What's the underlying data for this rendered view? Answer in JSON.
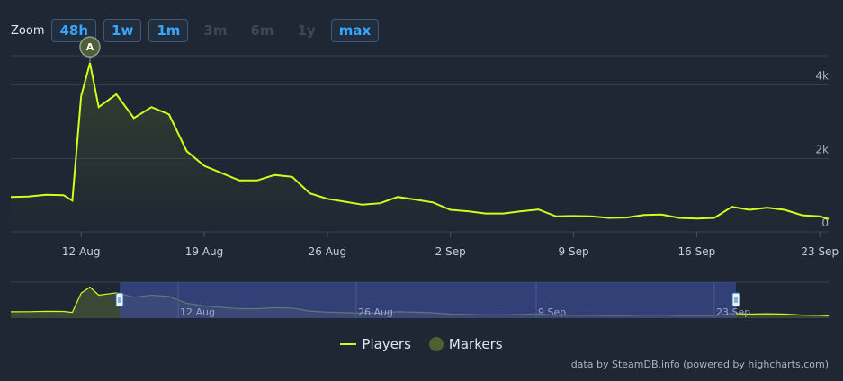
{
  "zoom": {
    "label": "Zoom",
    "buttons": [
      {
        "label": "48h",
        "state": "active"
      },
      {
        "label": "1w",
        "state": "active"
      },
      {
        "label": "1m",
        "state": "active"
      },
      {
        "label": "3m",
        "state": "disabled"
      },
      {
        "label": "6m",
        "state": "disabled"
      },
      {
        "label": "1y",
        "state": "disabled"
      },
      {
        "label": "max",
        "state": "active"
      }
    ]
  },
  "colors": {
    "background": "#1e2733",
    "line": "#d1ff1c",
    "marker": "#4f6033",
    "button_active": "#38a6ff",
    "navigator_mask": "#3a4a8f"
  },
  "legend": {
    "players": "Players",
    "markers": "Markers"
  },
  "credits": "data by SteamDB.info (powered by highcharts.com)",
  "chart_data": {
    "type": "line",
    "title": "",
    "xlabel": "",
    "ylabel": "",
    "x_ticks": [
      "12 Aug",
      "19 Aug",
      "26 Aug",
      "2 Sep",
      "9 Sep",
      "16 Sep",
      "23 Sep"
    ],
    "y_ticks": [
      "0",
      "2k",
      "4k"
    ],
    "ylim": [
      0,
      4800
    ],
    "xlim": [
      "2024-08-08",
      "2024-09-23"
    ],
    "grid": true,
    "legend_position": "bottom-center",
    "series": [
      {
        "name": "Players",
        "points": [
          [
            "2024-08-08",
            950
          ],
          [
            "2024-08-09",
            960
          ],
          [
            "2024-08-10",
            1010
          ],
          [
            "2024-08-11",
            1000
          ],
          [
            "2024-08-11T12",
            850
          ],
          [
            "2024-08-12",
            3700
          ],
          [
            "2024-08-12T12",
            4600
          ],
          [
            "2024-08-13",
            3400
          ],
          [
            "2024-08-14",
            3750
          ],
          [
            "2024-08-15",
            3100
          ],
          [
            "2024-08-16",
            3400
          ],
          [
            "2024-08-17",
            3200
          ],
          [
            "2024-08-18",
            2200
          ],
          [
            "2024-08-19",
            1800
          ],
          [
            "2024-08-20",
            1600
          ],
          [
            "2024-08-21",
            1400
          ],
          [
            "2024-08-22",
            1400
          ],
          [
            "2024-08-23",
            1550
          ],
          [
            "2024-08-24",
            1500
          ],
          [
            "2024-08-25",
            1050
          ],
          [
            "2024-08-26",
            900
          ],
          [
            "2024-08-27",
            820
          ],
          [
            "2024-08-28",
            740
          ],
          [
            "2024-08-29",
            780
          ],
          [
            "2024-08-30",
            950
          ],
          [
            "2024-08-31",
            880
          ],
          [
            "2024-09-01",
            800
          ],
          [
            "2024-09-02",
            600
          ],
          [
            "2024-09-03",
            560
          ],
          [
            "2024-09-04",
            500
          ],
          [
            "2024-09-05",
            500
          ],
          [
            "2024-09-06",
            560
          ],
          [
            "2024-09-07",
            610
          ],
          [
            "2024-09-08",
            420
          ],
          [
            "2024-09-09",
            430
          ],
          [
            "2024-09-10",
            420
          ],
          [
            "2024-09-11",
            380
          ],
          [
            "2024-09-12",
            390
          ],
          [
            "2024-09-13",
            460
          ],
          [
            "2024-09-14",
            470
          ],
          [
            "2024-09-15",
            380
          ],
          [
            "2024-09-16",
            360
          ],
          [
            "2024-09-17",
            380
          ],
          [
            "2024-09-18",
            680
          ],
          [
            "2024-09-19",
            600
          ],
          [
            "2024-09-20",
            660
          ],
          [
            "2024-09-21",
            600
          ],
          [
            "2024-09-22",
            450
          ],
          [
            "2024-09-23",
            420
          ],
          [
            "2024-09-23T12",
            350
          ]
        ]
      }
    ],
    "markers": [
      {
        "label": "A",
        "x": "2024-08-12T12",
        "y": 4600
      }
    ],
    "navigator": {
      "x_labels": [
        "12 Aug",
        "26 Aug",
        "9 Sep",
        "23 Sep"
      ],
      "selected_range": [
        "2024-08-08",
        "2024-09-23"
      ]
    }
  }
}
